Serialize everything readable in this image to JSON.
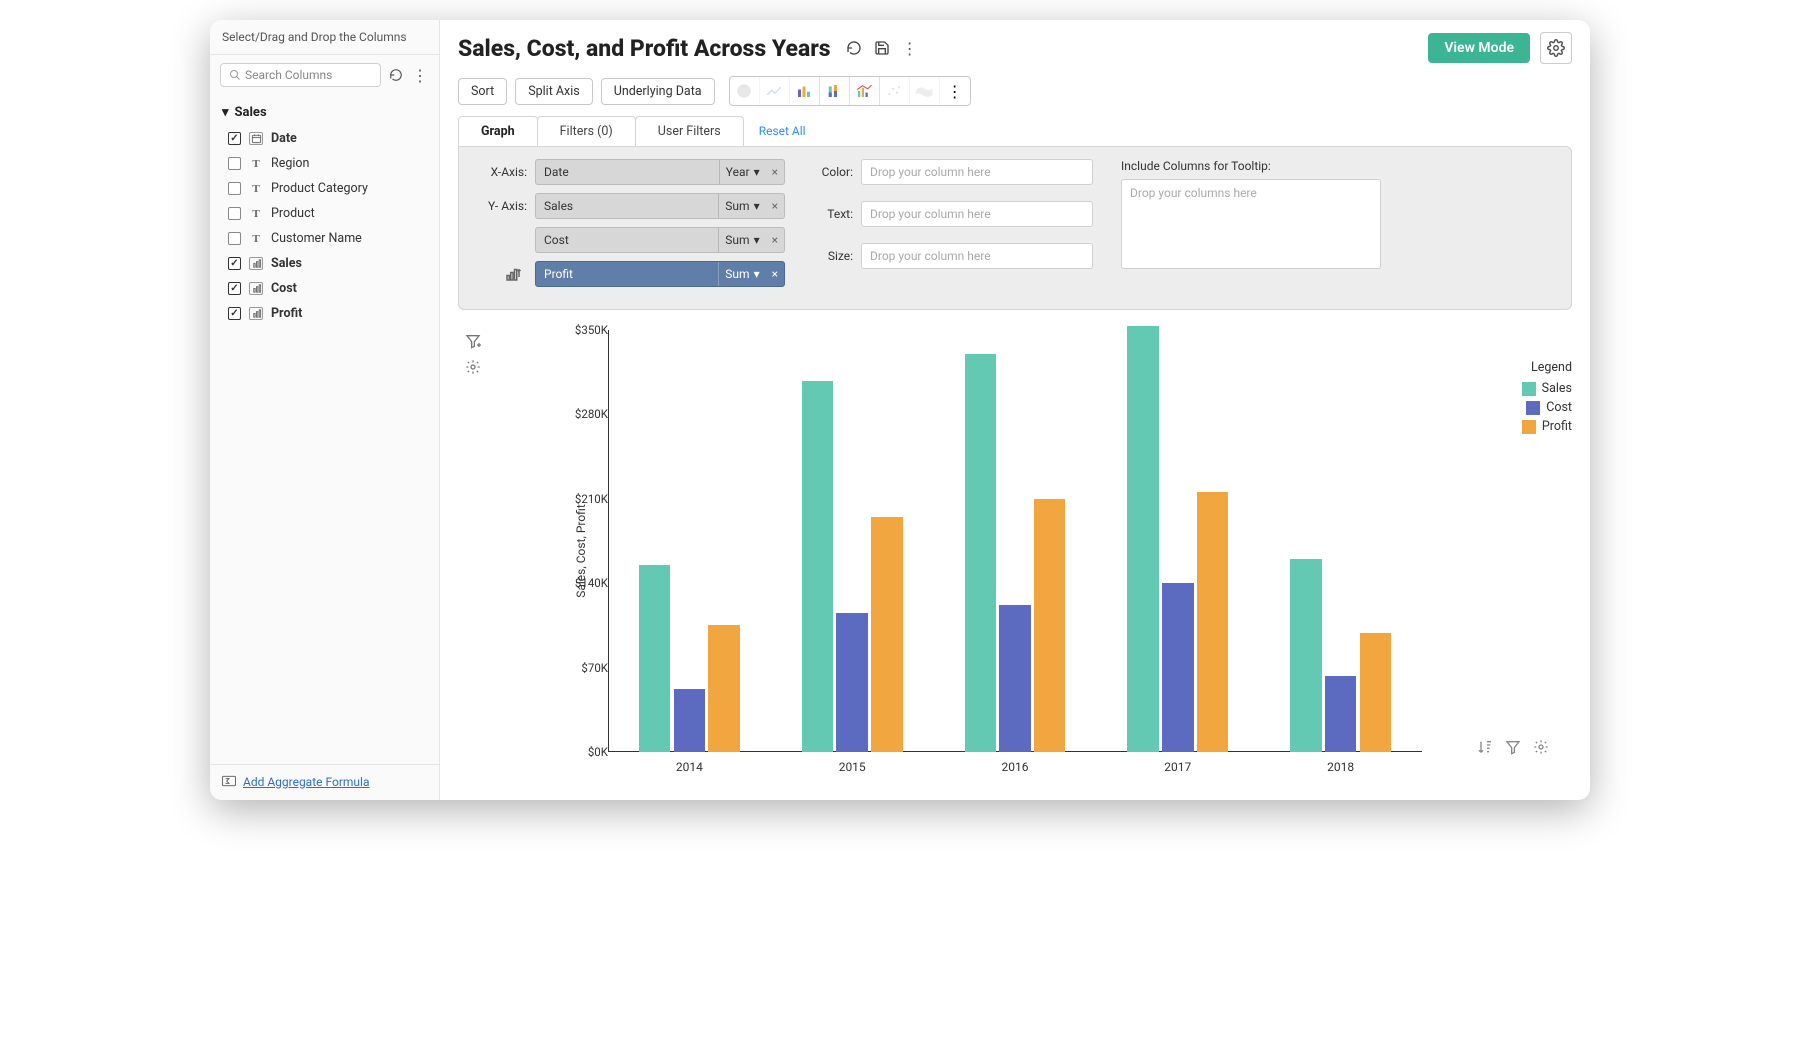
{
  "sidebar": {
    "header": "Select/Drag and Drop the Columns",
    "search_placeholder": "Search Columns",
    "group_label": "Sales",
    "items": [
      {
        "label": "Date",
        "checked": true,
        "type": "cal",
        "bold": true
      },
      {
        "label": "Region",
        "checked": false,
        "type": "T",
        "bold": false
      },
      {
        "label": "Product Category",
        "checked": false,
        "type": "T",
        "bold": false
      },
      {
        "label": "Product",
        "checked": false,
        "type": "T",
        "bold": false
      },
      {
        "label": "Customer Name",
        "checked": false,
        "type": "T",
        "bold": false
      },
      {
        "label": "Sales",
        "checked": true,
        "type": "num",
        "bold": true
      },
      {
        "label": "Cost",
        "checked": true,
        "type": "num",
        "bold": true
      },
      {
        "label": "Profit",
        "checked": true,
        "type": "num",
        "bold": true
      }
    ],
    "footer_link": "Add Aggregate Formula"
  },
  "header": {
    "title": "Sales, Cost, and Profit Across Years",
    "view_btn": "View Mode"
  },
  "toolbar": {
    "sort": "Sort",
    "split": "Split Axis",
    "underlying": "Underlying Data"
  },
  "tabs": {
    "graph": "Graph",
    "filters": "Filters  (0)",
    "userfilters": "User Filters",
    "reset": "Reset All"
  },
  "config": {
    "x_label": "X-Axis:",
    "y_label": "Y- Axis:",
    "x_pill": {
      "name": "Date",
      "agg": "Year"
    },
    "y_pills": [
      {
        "name": "Sales",
        "agg": "Sum",
        "blue": false
      },
      {
        "name": "Cost",
        "agg": "Sum",
        "blue": false
      },
      {
        "name": "Profit",
        "agg": "Sum",
        "blue": true
      }
    ],
    "color_label": "Color:",
    "text_label": "Text:",
    "size_label": "Size:",
    "drop_placeholder": "Drop your column here",
    "tooltip_label": "Include Columns for Tooltip:",
    "tooltip_placeholder": "Drop your columns here"
  },
  "chart": {
    "type": "bar",
    "y_axis_label": "Sales, Cost, Profit",
    "categories": [
      "2014",
      "2015",
      "2016",
      "2017",
      "2018"
    ],
    "series": [
      {
        "name": "Sales",
        "color": "#63c9b3",
        "values": [
          155,
          308,
          330,
          353,
          160
        ]
      },
      {
        "name": "Cost",
        "color": "#5c6bc0",
        "values": [
          52,
          115,
          122,
          140,
          63
        ]
      },
      {
        "name": "Profit",
        "color": "#f2a640",
        "values": [
          105,
          195,
          210,
          216,
          99
        ]
      }
    ],
    "ylim": [
      0,
      350
    ],
    "yticks": [
      0,
      70,
      140,
      210,
      280,
      350
    ],
    "ytick_labels": [
      "$0K",
      "$70K",
      "$140K",
      "$210K",
      "$280K",
      "$350K"
    ],
    "legend_title": "Legend",
    "background": "#ffffff",
    "axis_color": "#333333",
    "bar_group_width": 0.62,
    "bar_gap": 0.02
  }
}
